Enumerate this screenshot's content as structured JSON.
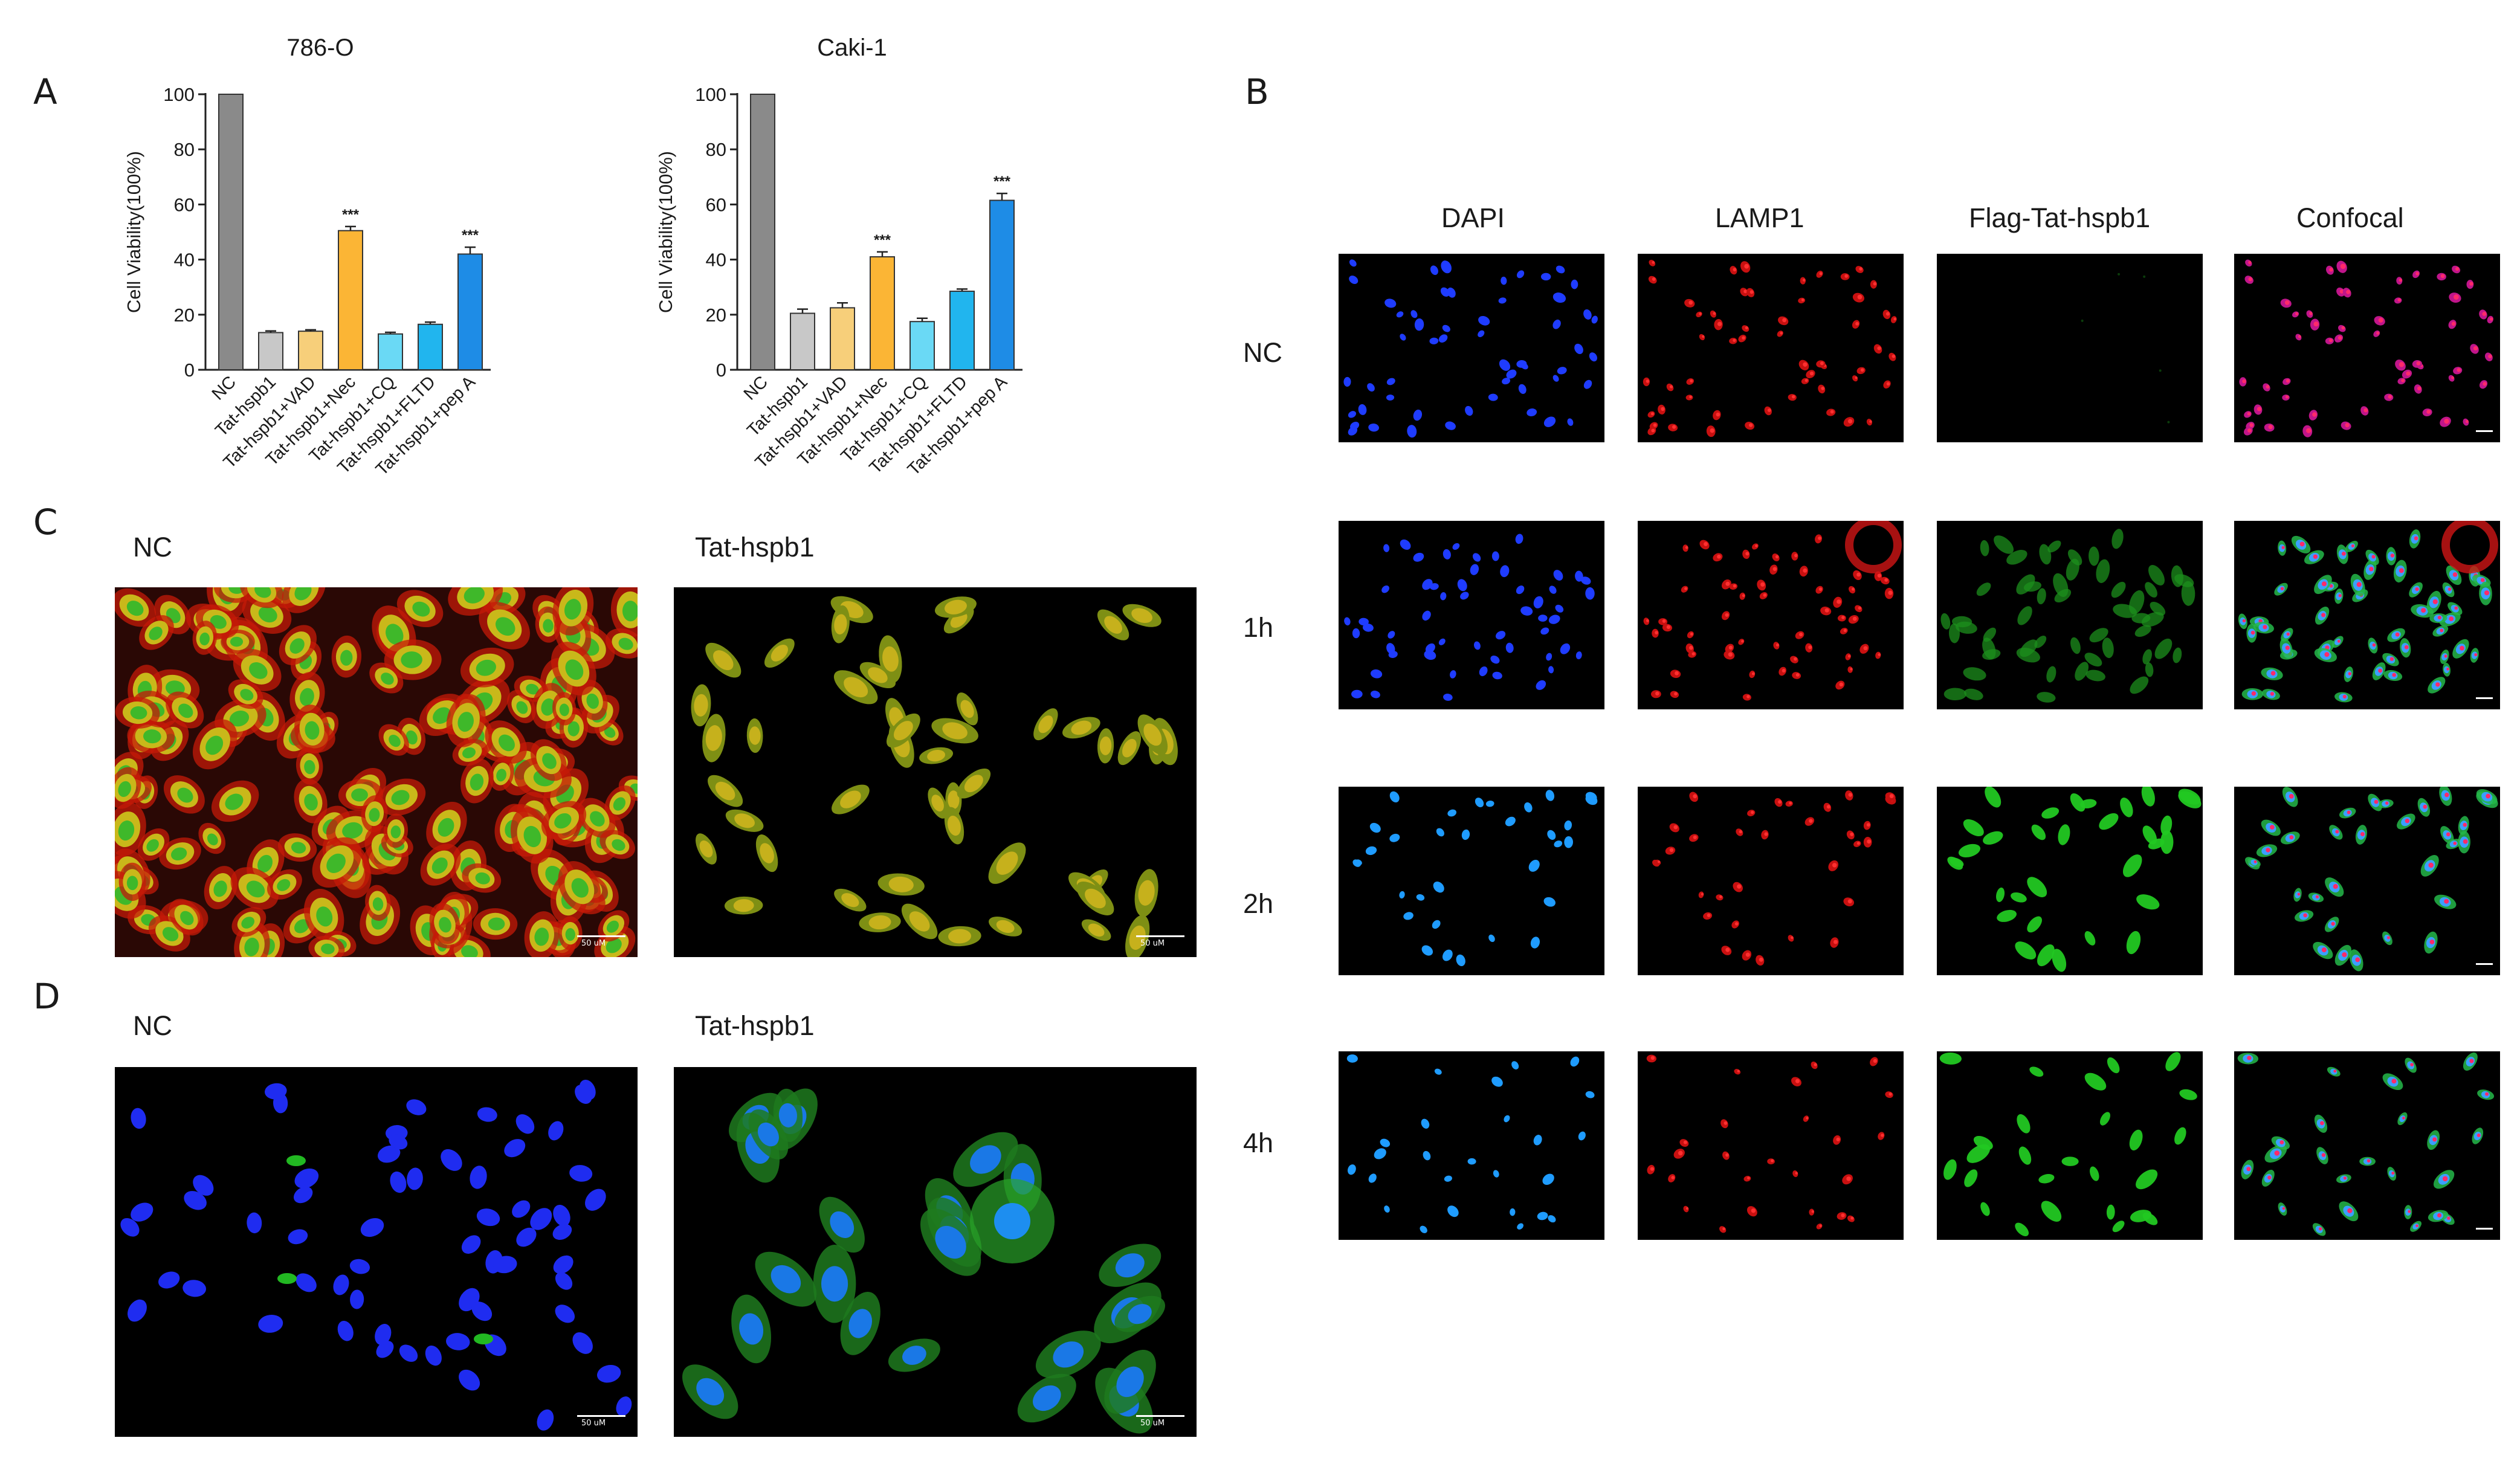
{
  "panels": {
    "A": "A",
    "B": "B",
    "C": "C",
    "D": "D"
  },
  "charts_A": [
    {
      "title": "786-O",
      "ylabel": "Cell Viability(100%)",
      "ylim": [
        0,
        100
      ],
      "yticks": [
        "0",
        "20",
        "40",
        "60",
        "80",
        "100"
      ]
    },
    {
      "title": "Caki-1",
      "ylabel": "Cell Viability(100%)",
      "ylim": [
        0,
        100
      ],
      "yticks": [
        "0",
        "20",
        "40",
        "60",
        "80",
        "100"
      ]
    }
  ],
  "chart_data": [
    {
      "type": "bar",
      "title": "786-O",
      "xlabel": "",
      "ylabel": "Cell Viability(100%)",
      "ylim": [
        0,
        100
      ],
      "categories": [
        "NC",
        "Tat-hspb1",
        "Tat-hspb1+VAD",
        "Tat-hspb1+Nec",
        "Tat-hspb1+CQ",
        "Tat-hspb1+FLTD",
        "Tat-hspb1+pep A"
      ],
      "values": [
        100,
        13.5,
        14,
        50.5,
        13,
        16.5,
        42
      ],
      "errors": [
        0,
        0.6,
        0.5,
        1.5,
        0.6,
        0.8,
        2.5
      ],
      "significance": [
        "",
        "",
        "",
        "***",
        "",
        "",
        "***"
      ],
      "colors": [
        "#8a8a8a",
        "#c8c8c8",
        "#f7cf7a",
        "#fbb535",
        "#6ad9f5",
        "#21b5ee",
        "#1e8ce6"
      ]
    },
    {
      "type": "bar",
      "title": "Caki-1",
      "xlabel": "",
      "ylabel": "Cell Viability(100%)",
      "ylim": [
        0,
        100
      ],
      "categories": [
        "NC",
        "Tat-hspb1",
        "Tat-hspb1+VAD",
        "Tat-hspb1+Nec",
        "Tat-hspb1+CQ",
        "Tat-hspb1+FLTD",
        "Tat-hspb1+pep A"
      ],
      "values": [
        100,
        20.5,
        22.5,
        41,
        17.5,
        28.5,
        61.5
      ],
      "errors": [
        0,
        1.5,
        1.8,
        1.8,
        1.2,
        0.8,
        2.5
      ],
      "significance": [
        "",
        "",
        "",
        "***",
        "",
        "",
        "***"
      ],
      "colors": [
        "#8a8a8a",
        "#c8c8c8",
        "#f7cf7a",
        "#fbb535",
        "#6ad9f5",
        "#21b5ee",
        "#1e8ce6"
      ]
    }
  ],
  "panel_B": {
    "columns": [
      "DAPI",
      "LAMP1",
      "Flag-Tat-hspb1",
      "Confocal"
    ],
    "rows": [
      "NC",
      "1h",
      "2h",
      "4h"
    ]
  },
  "panel_C": {
    "labels": [
      "NC",
      "Tat-hspb1"
    ],
    "scale": "50 uM"
  },
  "panel_D": {
    "labels": [
      "NC",
      "Tat-hspb1"
    ],
    "scale": "50 uM"
  },
  "colors": {
    "dapi": "#1f3cff",
    "lamp1": "#e01010",
    "flag": "#22c822",
    "merge_yellow": "#d6c21a"
  }
}
